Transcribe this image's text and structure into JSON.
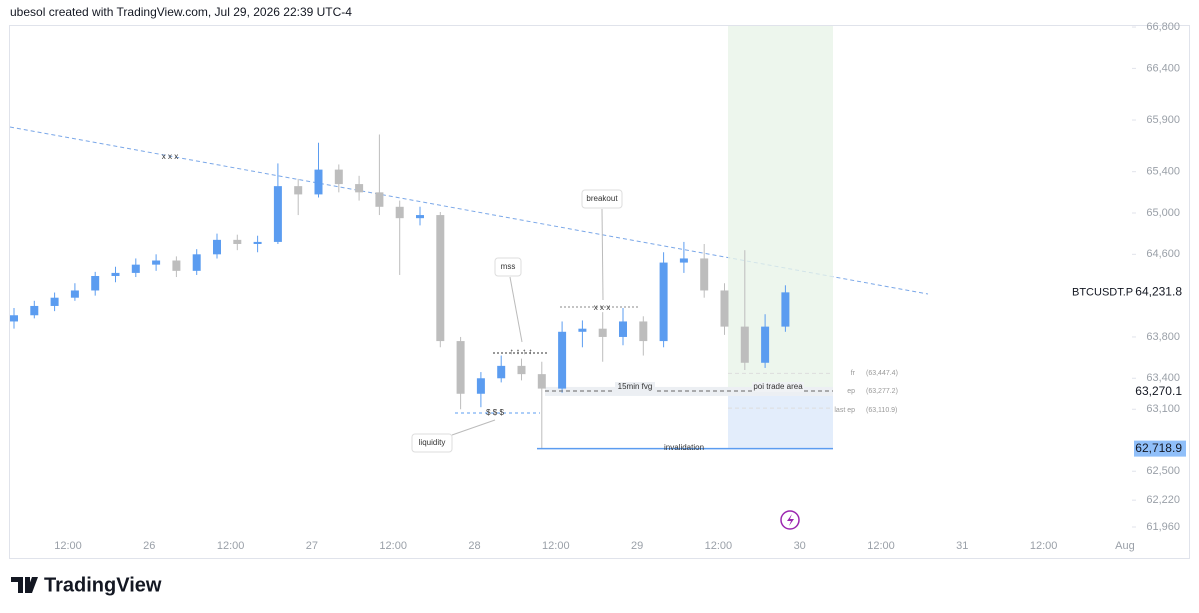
{
  "header": {
    "title": "ubesol created with TradingView.com, Jul 29, 2026 22:39 UTC-4"
  },
  "footer": {
    "brand": "TradingView"
  },
  "chart_data": {
    "type": "candlestick",
    "symbol": "BTCUSDT.P",
    "last_price": {
      "value": 64231.8,
      "label": "64,231.8"
    },
    "price_badges": [
      {
        "value": 63270.1,
        "label": "63,270.1"
      },
      {
        "value": 62718.9,
        "label": "62,718.9"
      }
    ],
    "up_color": "#5b9cf0",
    "down_color": "#bdbdbd",
    "ylim": [
      61660,
      66820
    ],
    "yticks": [
      {
        "value": 66800,
        "label": "66,800"
      },
      {
        "value": 66400,
        "label": "66,400"
      },
      {
        "value": 65900,
        "label": "65,900"
      },
      {
        "value": 65400,
        "label": "65,400"
      },
      {
        "value": 65000,
        "label": "65,000"
      },
      {
        "value": 64600,
        "label": "64,600"
      },
      {
        "value": 63800,
        "label": "63,800"
      },
      {
        "value": 63400,
        "label": "63,400"
      },
      {
        "value": 63100,
        "label": "63,100"
      },
      {
        "value": 62500,
        "label": "62,500"
      },
      {
        "value": 62220,
        "label": "62,220"
      },
      {
        "value": 61960,
        "label": "61,960"
      }
    ],
    "x_labels": [
      "12:00",
      "26",
      "12:00",
      "27",
      "12:00",
      "28",
      "12:00",
      "29",
      "12:00",
      "30",
      "12:00",
      "31",
      "12:00",
      "Aug"
    ],
    "ohlc": [
      [
        63950,
        64080,
        63880,
        64010
      ],
      [
        64010,
        64150,
        63980,
        64100
      ],
      [
        64100,
        64230,
        64050,
        64180
      ],
      [
        64180,
        64320,
        64150,
        64250
      ],
      [
        64250,
        64430,
        64200,
        64390
      ],
      [
        64390,
        64480,
        64330,
        64420
      ],
      [
        64420,
        64560,
        64380,
        64500
      ],
      [
        64500,
        64600,
        64440,
        64540
      ],
      [
        64540,
        64580,
        64380,
        64440
      ],
      [
        64440,
        64650,
        64400,
        64600
      ],
      [
        64600,
        64800,
        64560,
        64740
      ],
      [
        64740,
        64790,
        64640,
        64700
      ],
      [
        64700,
        64780,
        64620,
        64720
      ],
      [
        64720,
        65480,
        64700,
        65260
      ],
      [
        65260,
        65330,
        64980,
        65180
      ],
      [
        65180,
        65680,
        65150,
        65420
      ],
      [
        65420,
        65470,
        65200,
        65280
      ],
      [
        65280,
        65360,
        65120,
        65200
      ],
      [
        65200,
        65760,
        64980,
        65060
      ],
      [
        65060,
        65120,
        64400,
        64950
      ],
      [
        64950,
        65060,
        64880,
        64980
      ],
      [
        64980,
        65010,
        63700,
        63760
      ],
      [
        63760,
        63800,
        63100,
        63250
      ],
      [
        63250,
        63460,
        63120,
        63400
      ],
      [
        63400,
        63620,
        63360,
        63520
      ],
      [
        63520,
        63590,
        63380,
        63440
      ],
      [
        63440,
        63560,
        62718.9,
        63300
      ],
      [
        63300,
        63950,
        63260,
        63850
      ],
      [
        63850,
        63960,
        63700,
        63880
      ],
      [
        63880,
        64040,
        63560,
        63800
      ],
      [
        63800,
        64080,
        63720,
        63950
      ],
      [
        63950,
        64000,
        63620,
        63760
      ],
      [
        63760,
        64620,
        63700,
        64520
      ],
      [
        64520,
        64720,
        64420,
        64560
      ],
      [
        64560,
        64700,
        64180,
        64250
      ],
      [
        64250,
        64320,
        63820,
        63900
      ],
      [
        63900,
        64640,
        63480,
        63550
      ],
      [
        63550,
        64020,
        63500,
        63900
      ],
      [
        63900,
        64300,
        63850,
        64231.8
      ]
    ],
    "levels": [
      {
        "name": "fr",
        "value": 63447.4,
        "label": "(63,447.4)"
      },
      {
        "name": "ep",
        "value": 63277.2,
        "label": "(63,277.2)"
      },
      {
        "name": "last ep",
        "value": 63110.9,
        "label": "(63,110.9)"
      }
    ],
    "annotations": [
      "x x x",
      "breakout",
      "mss",
      "liquidity",
      "$ $ $",
      "↑ ↑ ↑ ↑",
      "x x x",
      "15min fvg",
      "poi trade area",
      "invalidation"
    ]
  }
}
